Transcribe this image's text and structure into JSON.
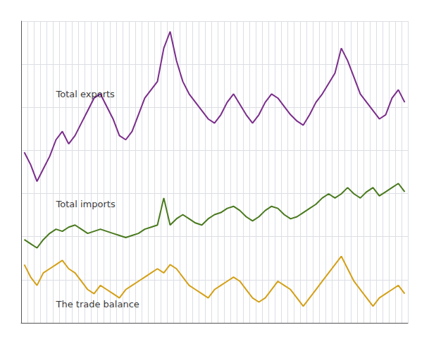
{
  "chart_data": {
    "type": "line",
    "categories": [
      null,
      null,
      null,
      null,
      null,
      null,
      null,
      null,
      null,
      null,
      null,
      null,
      null,
      null,
      null,
      null,
      null,
      null,
      null,
      null,
      null,
      null,
      null,
      null,
      null,
      null,
      null,
      null,
      null,
      null,
      null,
      null,
      null,
      null,
      null,
      null,
      null,
      null,
      null,
      null,
      null,
      null,
      null,
      null,
      null,
      null,
      null,
      null,
      null,
      null,
      null,
      null,
      null,
      null,
      null,
      null,
      null,
      null,
      null,
      null,
      null
    ],
    "series": [
      {
        "color": "#7b2d8b",
        "values": [
          82,
          76,
          68,
          74,
          80,
          88,
          92,
          86,
          90,
          96,
          102,
          108,
          110,
          104,
          98,
          90,
          88,
          92,
          100,
          108,
          112,
          116,
          132,
          140,
          126,
          116,
          110,
          106,
          102,
          98,
          96,
          100,
          106,
          110,
          105,
          100,
          96,
          100,
          106,
          110,
          108,
          104,
          100,
          97,
          95,
          100,
          106,
          110,
          115,
          120,
          132,
          126,
          118,
          110,
          106,
          102,
          98,
          100,
          108,
          112,
          106
        ]
      },
      {
        "color": "#4a7a1e",
        "values": [
          40,
          38,
          36,
          40,
          43,
          45,
          44,
          46,
          47,
          45,
          43,
          44,
          45,
          44,
          43,
          42,
          41,
          42,
          43,
          45,
          46,
          47,
          60,
          47,
          50,
          52,
          50,
          48,
          47,
          50,
          52,
          53,
          55,
          56,
          54,
          51,
          49,
          51,
          54,
          56,
          55,
          52,
          50,
          51,
          53,
          55,
          57,
          60,
          62,
          60,
          62,
          65,
          62,
          60,
          63,
          65,
          61,
          63,
          65,
          67,
          63
        ]
      },
      {
        "color": "#d4a017",
        "values": [
          28,
          22,
          18,
          24,
          26,
          28,
          30,
          26,
          24,
          20,
          16,
          14,
          18,
          16,
          14,
          12,
          16,
          18,
          20,
          22,
          24,
          26,
          24,
          28,
          26,
          22,
          18,
          16,
          14,
          12,
          16,
          18,
          20,
          22,
          20,
          16,
          12,
          10,
          12,
          16,
          20,
          18,
          16,
          12,
          8,
          12,
          16,
          20,
          24,
          28,
          32,
          26,
          20,
          16,
          12,
          8,
          12,
          14,
          16,
          18,
          14
        ]
      }
    ],
    "annotations": [
      {
        "text": "Total exports",
        "x": 5,
        "y": 110
      },
      {
        "text": "Total imports",
        "x": 5,
        "y": 57
      },
      {
        "text": "The trade balance",
        "x": 5,
        "y": 9
      }
    ],
    "ylim": [
      0,
      145
    ],
    "yticks": [
      0,
      20.714285714285715,
      41.42857142857143,
      62.142857142857146,
      82.85714285714286,
      103.57142857142858,
      124.28571428571429,
      145
    ],
    "grid": true,
    "tick_labels": false
  }
}
